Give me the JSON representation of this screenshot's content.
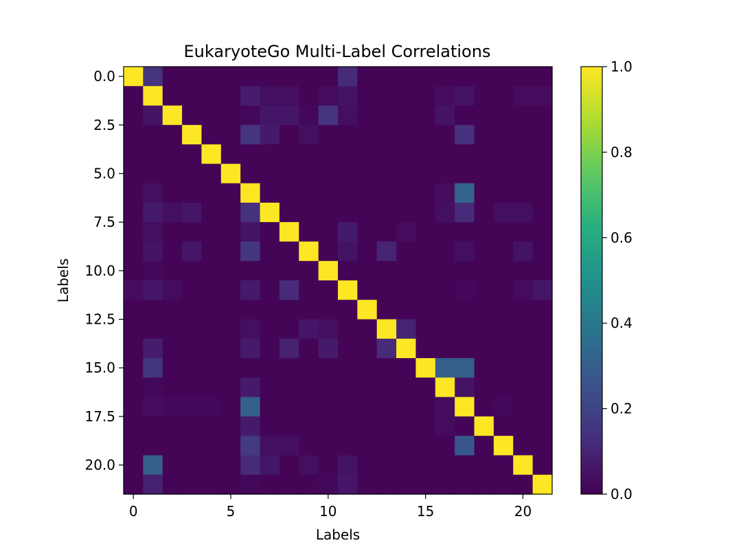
{
  "chart_data": {
    "type": "heatmap",
    "title": "EukaryoteGo Multi-Label Correlations",
    "xlabel": "Labels",
    "ylabel": "Labels",
    "x_ticks": [
      "0",
      "5",
      "10",
      "15",
      "20"
    ],
    "y_ticks": [
      "0.0",
      "2.5",
      "5.0",
      "7.5",
      "10.0",
      "12.5",
      "15.0",
      "17.5",
      "20.0"
    ],
    "colorbar": {
      "colormap": "viridis",
      "range": [
        0.0,
        1.0
      ],
      "ticks": [
        "0.0",
        "0.2",
        "0.4",
        "0.6",
        "0.8",
        "1.0"
      ]
    },
    "size": 22,
    "matrix": [
      [
        1.0,
        0.15,
        0.01,
        0.01,
        0.01,
        0.01,
        0.01,
        0.01,
        0.01,
        0.01,
        0.01,
        0.12,
        0.01,
        0.01,
        0.01,
        0.01,
        0.01,
        0.01,
        0.01,
        0.01,
        0.01,
        0.01
      ],
      [
        0.01,
        1.0,
        0.01,
        0.01,
        0.01,
        0.01,
        0.08,
        0.04,
        0.04,
        0.01,
        0.03,
        0.05,
        0.01,
        0.01,
        0.01,
        0.01,
        0.03,
        0.05,
        0.01,
        0.01,
        0.03,
        0.03
      ],
      [
        0.01,
        0.05,
        1.0,
        0.01,
        0.01,
        0.01,
        0.02,
        0.06,
        0.06,
        0.02,
        0.15,
        0.04,
        0.01,
        0.01,
        0.01,
        0.01,
        0.05,
        0.01,
        0.01,
        0.01,
        0.01,
        0.01
      ],
      [
        0.01,
        0.01,
        0.01,
        1.0,
        0.01,
        0.01,
        0.15,
        0.07,
        0.01,
        0.04,
        0.01,
        0.01,
        0.01,
        0.01,
        0.01,
        0.01,
        0.01,
        0.14,
        0.01,
        0.01,
        0.01,
        0.01
      ],
      [
        0.01,
        0.01,
        0.01,
        0.01,
        1.0,
        0.01,
        0.01,
        0.01,
        0.01,
        0.01,
        0.01,
        0.01,
        0.01,
        0.01,
        0.01,
        0.01,
        0.01,
        0.01,
        0.01,
        0.01,
        0.01,
        0.01
      ],
      [
        0.01,
        0.01,
        0.01,
        0.01,
        0.01,
        1.0,
        0.01,
        0.01,
        0.01,
        0.01,
        0.01,
        0.01,
        0.01,
        0.01,
        0.01,
        0.01,
        0.01,
        0.01,
        0.01,
        0.01,
        0.01,
        0.01
      ],
      [
        0.01,
        0.04,
        0.01,
        0.01,
        0.01,
        0.01,
        1.0,
        0.01,
        0.01,
        0.01,
        0.01,
        0.01,
        0.01,
        0.01,
        0.01,
        0.01,
        0.03,
        0.32,
        0.01,
        0.01,
        0.01,
        0.01
      ],
      [
        0.01,
        0.07,
        0.04,
        0.06,
        0.01,
        0.01,
        0.14,
        1.0,
        0.01,
        0.01,
        0.01,
        0.01,
        0.01,
        0.01,
        0.01,
        0.01,
        0.04,
        0.12,
        0.01,
        0.04,
        0.04,
        0.01
      ],
      [
        0.01,
        0.04,
        0.01,
        0.01,
        0.01,
        0.01,
        0.05,
        0.01,
        1.0,
        0.01,
        0.01,
        0.07,
        0.01,
        0.01,
        0.03,
        0.01,
        0.01,
        0.01,
        0.01,
        0.01,
        0.01,
        0.01
      ],
      [
        0.01,
        0.05,
        0.01,
        0.06,
        0.01,
        0.01,
        0.16,
        0.01,
        0.01,
        1.0,
        0.01,
        0.05,
        0.01,
        0.1,
        0.01,
        0.01,
        0.01,
        0.04,
        0.01,
        0.01,
        0.05,
        0.01
      ],
      [
        0.01,
        0.02,
        0.01,
        0.01,
        0.01,
        0.01,
        0.01,
        0.01,
        0.01,
        0.01,
        1.0,
        0.01,
        0.01,
        0.01,
        0.01,
        0.01,
        0.01,
        0.01,
        0.01,
        0.01,
        0.01,
        0.01
      ],
      [
        0.03,
        0.06,
        0.03,
        0.01,
        0.01,
        0.01,
        0.07,
        0.01,
        0.12,
        0.01,
        0.01,
        1.0,
        0.01,
        0.01,
        0.01,
        0.01,
        0.01,
        0.02,
        0.01,
        0.01,
        0.03,
        0.06
      ],
      [
        0.01,
        0.01,
        0.01,
        0.01,
        0.01,
        0.01,
        0.01,
        0.01,
        0.01,
        0.01,
        0.01,
        0.01,
        1.0,
        0.01,
        0.01,
        0.01,
        0.01,
        0.01,
        0.01,
        0.01,
        0.01,
        0.01
      ],
      [
        0.01,
        0.01,
        0.01,
        0.01,
        0.01,
        0.01,
        0.04,
        0.01,
        0.01,
        0.06,
        0.04,
        0.01,
        0.01,
        1.0,
        0.1,
        0.01,
        0.01,
        0.01,
        0.01,
        0.01,
        0.01,
        0.01
      ],
      [
        0.01,
        0.08,
        0.01,
        0.01,
        0.01,
        0.01,
        0.07,
        0.01,
        0.09,
        0.01,
        0.07,
        0.01,
        0.01,
        0.12,
        1.0,
        0.01,
        0.01,
        0.01,
        0.01,
        0.01,
        0.01,
        0.01
      ],
      [
        0.01,
        0.16,
        0.01,
        0.01,
        0.01,
        0.01,
        0.01,
        0.01,
        0.01,
        0.01,
        0.01,
        0.01,
        0.01,
        0.01,
        0.01,
        1.0,
        0.3,
        0.3,
        0.01,
        0.01,
        0.01,
        0.01
      ],
      [
        0.01,
        0.02,
        0.01,
        0.01,
        0.01,
        0.01,
        0.07,
        0.01,
        0.01,
        0.01,
        0.01,
        0.01,
        0.01,
        0.01,
        0.01,
        0.01,
        1.0,
        0.05,
        0.01,
        0.01,
        0.01,
        0.01
      ],
      [
        0.01,
        0.03,
        0.02,
        0.02,
        0.02,
        0.01,
        0.3,
        0.01,
        0.01,
        0.01,
        0.01,
        0.01,
        0.01,
        0.01,
        0.01,
        0.01,
        0.03,
        1.0,
        0.01,
        0.02,
        0.01,
        0.01
      ],
      [
        0.01,
        0.01,
        0.01,
        0.01,
        0.01,
        0.01,
        0.07,
        0.01,
        0.01,
        0.01,
        0.01,
        0.01,
        0.01,
        0.01,
        0.01,
        0.01,
        0.03,
        0.01,
        1.0,
        0.01,
        0.01,
        0.01
      ],
      [
        0.01,
        0.01,
        0.01,
        0.01,
        0.01,
        0.01,
        0.17,
        0.04,
        0.04,
        0.01,
        0.01,
        0.01,
        0.01,
        0.01,
        0.01,
        0.01,
        0.01,
        0.27,
        0.01,
        1.0,
        0.01,
        0.01
      ],
      [
        0.01,
        0.3,
        0.01,
        0.01,
        0.01,
        0.01,
        0.12,
        0.06,
        0.01,
        0.04,
        0.01,
        0.05,
        0.01,
        0.01,
        0.01,
        0.01,
        0.01,
        0.01,
        0.01,
        0.01,
        1.0,
        0.01
      ],
      [
        0.01,
        0.09,
        0.01,
        0.01,
        0.01,
        0.01,
        0.02,
        0.01,
        0.01,
        0.01,
        0.02,
        0.06,
        0.01,
        0.01,
        0.01,
        0.01,
        0.01,
        0.01,
        0.01,
        0.01,
        0.01,
        1.0
      ]
    ]
  }
}
